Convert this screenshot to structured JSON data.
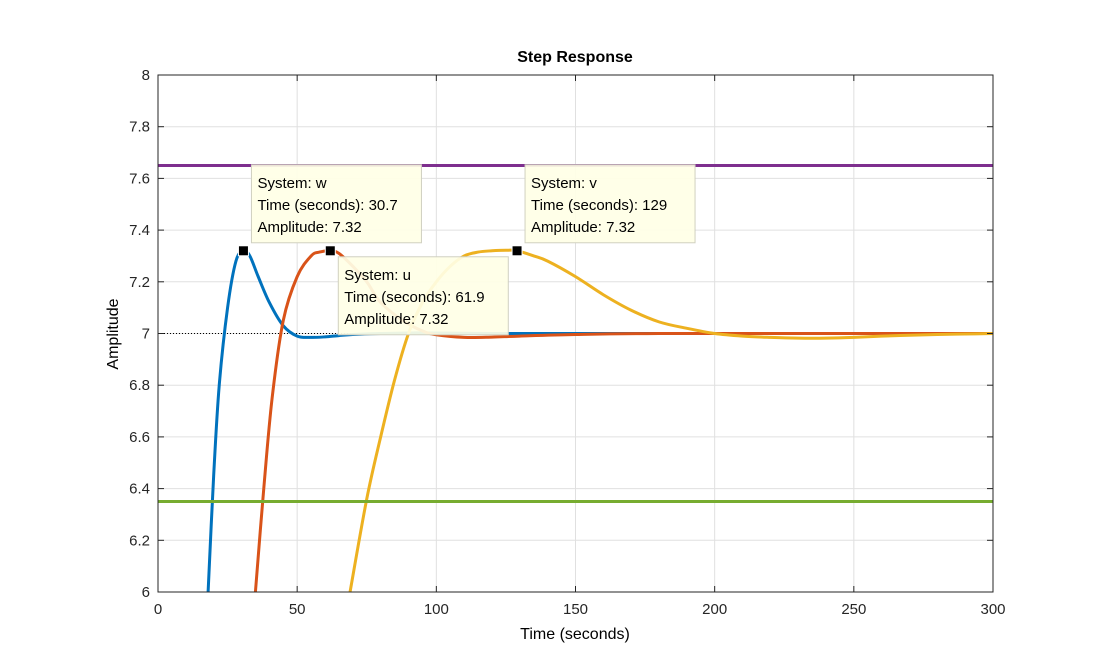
{
  "chart_data": {
    "type": "line",
    "title": "Step Response",
    "xlabel": "Time (seconds)",
    "ylabel": "Amplitude",
    "xlim": [
      0,
      300
    ],
    "ylim": [
      6,
      8
    ],
    "xticks": [
      "0",
      "50",
      "100",
      "150",
      "200",
      "250",
      "300"
    ],
    "yticks": [
      "6",
      "6.2",
      "6.4",
      "6.6",
      "6.8",
      "7",
      "7.2",
      "7.4",
      "7.6",
      "7.8",
      "8"
    ],
    "grid": true,
    "final_value": 7,
    "series": [
      {
        "name": "w",
        "color": "#0072BD",
        "x": [
          18,
          20,
          22,
          25,
          28,
          30.7,
          33,
          36,
          40,
          45,
          50,
          55,
          60,
          65,
          70,
          80,
          90,
          100,
          120,
          150,
          200,
          300
        ],
        "y": [
          6.0,
          6.45,
          6.8,
          7.1,
          7.28,
          7.32,
          7.3,
          7.22,
          7.12,
          7.03,
          6.99,
          6.985,
          6.987,
          6.992,
          6.996,
          7.0,
          7.002,
          7.002,
          7.0,
          7.0,
          7.0,
          7.0
        ]
      },
      {
        "name": "u",
        "color": "#D95319",
        "x": [
          35,
          38,
          41,
          45,
          50,
          55,
          58,
          61.9,
          65,
          70,
          75,
          80,
          88,
          95,
          100,
          110,
          120,
          130,
          150,
          180,
          240,
          300
        ],
        "y": [
          6.0,
          6.4,
          6.75,
          7.05,
          7.22,
          7.3,
          7.315,
          7.32,
          7.31,
          7.26,
          7.2,
          7.12,
          7.05,
          7.01,
          6.995,
          6.985,
          6.986,
          6.99,
          6.996,
          7.0,
          7.0,
          7.0
        ]
      },
      {
        "name": "v",
        "color": "#EDB120",
        "x": [
          69,
          75,
          80,
          85,
          90,
          95,
          100,
          105,
          110,
          115,
          120,
          125,
          129,
          135,
          140,
          150,
          160,
          170,
          180,
          190,
          200,
          210,
          220,
          230,
          240,
          250,
          260,
          270,
          280,
          290,
          300
        ],
        "y": [
          6.0,
          6.36,
          6.6,
          6.82,
          7.0,
          7.12,
          7.2,
          7.26,
          7.3,
          7.315,
          7.32,
          7.322,
          7.32,
          7.3,
          7.28,
          7.22,
          7.15,
          7.09,
          7.045,
          7.02,
          7.0,
          6.99,
          6.985,
          6.982,
          6.982,
          6.985,
          6.99,
          6.993,
          6.996,
          6.998,
          7.0
        ]
      },
      {
        "name": "",
        "color": "#7E2F8E",
        "x": [
          0,
          300
        ],
        "y": [
          7.65,
          7.65
        ]
      },
      {
        "name": "",
        "color": "#77AC30",
        "x": [
          0,
          300
        ],
        "y": [
          6.35,
          6.35
        ]
      }
    ],
    "datatips": [
      {
        "system": "System: w",
        "time": "Time (seconds): 30.7",
        "amplitude": "Amplitude: 7.32",
        "x": 30.7,
        "y": 7.32
      },
      {
        "system": "System: u",
        "time": "Time (seconds): 61.9",
        "amplitude": "Amplitude: 7.32",
        "x": 61.9,
        "y": 7.32
      },
      {
        "system": "System: v",
        "time": "Time (seconds): 129",
        "amplitude": "Amplitude: 7.32",
        "x": 129,
        "y": 7.32
      }
    ]
  }
}
